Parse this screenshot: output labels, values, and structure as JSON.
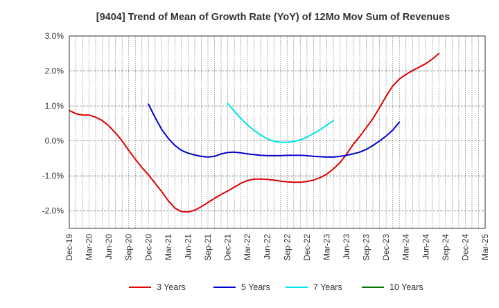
{
  "chart_data": {
    "type": "line",
    "title": "[9404]  Trend of Mean of Growth Rate (YoY) of 12Mo Mov Sum of Revenues",
    "xlabel": "",
    "ylabel": "",
    "ylim": [
      -2.5,
      3.0
    ],
    "yticks": [
      3.0,
      2.0,
      1.0,
      0.0,
      -1.0,
      -2.0
    ],
    "ytick_labels": [
      "3.0%",
      "2.0%",
      "1.0%",
      "0.0%",
      "-1.0%",
      "-2.0%"
    ],
    "x_start_index": 0,
    "x_end_index": 63,
    "x_tick_labels": [
      "Dec-19",
      "Mar-20",
      "Jun-20",
      "Sep-20",
      "Dec-20",
      "Mar-21",
      "Jun-21",
      "Sep-21",
      "Dec-21",
      "Mar-22",
      "Jun-22",
      "Sep-22",
      "Dec-22",
      "Mar-23",
      "Jun-23",
      "Sep-23",
      "Dec-23",
      "Mar-24",
      "Jun-24",
      "Sep-24",
      "Dec-24",
      "Mar-25"
    ],
    "grid": true,
    "legend_position": "bottom",
    "series": [
      {
        "name": "3 Years",
        "color": "#dd0000",
        "points": [
          [
            0,
            0.87
          ],
          [
            1,
            0.78
          ],
          [
            2,
            0.74
          ],
          [
            3,
            0.74
          ],
          [
            4,
            0.68
          ],
          [
            5,
            0.58
          ],
          [
            6,
            0.43
          ],
          [
            7,
            0.23
          ],
          [
            8,
            0.0
          ],
          [
            9,
            -0.27
          ],
          [
            10,
            -0.52
          ],
          [
            11,
            -0.76
          ],
          [
            12,
            -0.97
          ],
          [
            13,
            -1.21
          ],
          [
            14,
            -1.45
          ],
          [
            15,
            -1.71
          ],
          [
            16,
            -1.92
          ],
          [
            17,
            -2.02
          ],
          [
            18,
            -2.03
          ],
          [
            19,
            -1.98
          ],
          [
            20,
            -1.88
          ],
          [
            21,
            -1.76
          ],
          [
            22,
            -1.64
          ],
          [
            23,
            -1.53
          ],
          [
            24,
            -1.43
          ],
          [
            25,
            -1.32
          ],
          [
            26,
            -1.21
          ],
          [
            27,
            -1.13
          ],
          [
            28,
            -1.09
          ],
          [
            29,
            -1.09
          ],
          [
            30,
            -1.1
          ],
          [
            31,
            -1.12
          ],
          [
            32,
            -1.15
          ],
          [
            33,
            -1.17
          ],
          [
            34,
            -1.18
          ],
          [
            35,
            -1.18
          ],
          [
            36,
            -1.16
          ],
          [
            37,
            -1.12
          ],
          [
            38,
            -1.05
          ],
          [
            39,
            -0.95
          ],
          [
            40,
            -0.8
          ],
          [
            41,
            -0.62
          ],
          [
            42,
            -0.38
          ],
          [
            43,
            -0.1
          ],
          [
            44,
            0.13
          ],
          [
            45,
            0.38
          ],
          [
            46,
            0.64
          ],
          [
            47,
            0.95
          ],
          [
            48,
            1.28
          ],
          [
            49,
            1.57
          ],
          [
            50,
            1.77
          ],
          [
            51,
            1.9
          ],
          [
            52,
            2.01
          ],
          [
            53,
            2.11
          ],
          [
            54,
            2.21
          ],
          [
            55,
            2.34
          ],
          [
            56,
            2.5
          ]
        ]
      },
      {
        "name": "5 Years",
        "color": "#0000cc",
        "points": [
          [
            12,
            1.05
          ],
          [
            13,
            0.67
          ],
          [
            14,
            0.33
          ],
          [
            15,
            0.07
          ],
          [
            16,
            -0.13
          ],
          [
            17,
            -0.27
          ],
          [
            18,
            -0.35
          ],
          [
            19,
            -0.4
          ],
          [
            20,
            -0.44
          ],
          [
            21,
            -0.46
          ],
          [
            22,
            -0.44
          ],
          [
            23,
            -0.37
          ],
          [
            24,
            -0.33
          ],
          [
            25,
            -0.32
          ],
          [
            26,
            -0.34
          ],
          [
            27,
            -0.37
          ],
          [
            28,
            -0.39
          ],
          [
            29,
            -0.41
          ],
          [
            30,
            -0.42
          ],
          [
            31,
            -0.42
          ],
          [
            32,
            -0.42
          ],
          [
            33,
            -0.41
          ],
          [
            34,
            -0.41
          ],
          [
            35,
            -0.41
          ],
          [
            36,
            -0.42
          ],
          [
            37,
            -0.44
          ],
          [
            38,
            -0.45
          ],
          [
            39,
            -0.46
          ],
          [
            40,
            -0.46
          ],
          [
            41,
            -0.44
          ],
          [
            42,
            -0.41
          ],
          [
            43,
            -0.37
          ],
          [
            44,
            -0.32
          ],
          [
            45,
            -0.24
          ],
          [
            46,
            -0.13
          ],
          [
            47,
            0.0
          ],
          [
            48,
            0.14
          ],
          [
            49,
            0.31
          ],
          [
            50,
            0.54
          ]
        ]
      },
      {
        "name": "7 Years",
        "color": "#00e5e5",
        "points": [
          [
            24,
            1.07
          ],
          [
            25,
            0.85
          ],
          [
            26,
            0.64
          ],
          [
            27,
            0.46
          ],
          [
            28,
            0.3
          ],
          [
            29,
            0.17
          ],
          [
            30,
            0.06
          ],
          [
            31,
            -0.01
          ],
          [
            32,
            -0.04
          ],
          [
            33,
            -0.04
          ],
          [
            34,
            -0.02
          ],
          [
            35,
            0.03
          ],
          [
            36,
            0.11
          ],
          [
            37,
            0.21
          ],
          [
            38,
            0.32
          ],
          [
            39,
            0.45
          ],
          [
            40,
            0.58
          ]
        ]
      },
      {
        "name": "10 Years",
        "color": "#007700",
        "points": []
      }
    ]
  }
}
